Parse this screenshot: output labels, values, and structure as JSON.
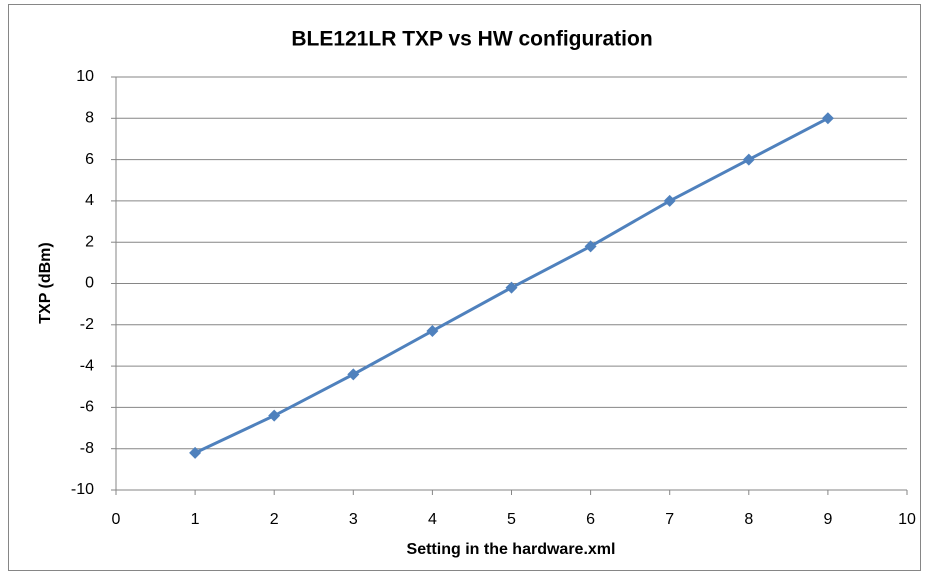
{
  "chart_data": {
    "type": "line",
    "title": "BLE121LR TXP vs HW configuration",
    "x_label": "Setting in the hardware.xml",
    "y_label": "TXP (dBm)",
    "x": [
      1,
      2,
      3,
      4,
      5,
      6,
      7,
      8,
      9
    ],
    "series": [
      {
        "name": "TXP",
        "color": "#4f81bd",
        "values": [
          -8.2,
          -6.4,
          -4.4,
          -2.3,
          -0.2,
          1.8,
          4,
          6,
          8
        ]
      }
    ],
    "xlim": [
      0,
      10
    ],
    "xticks": [
      0,
      1,
      2,
      3,
      4,
      5,
      6,
      7,
      8,
      9,
      10
    ],
    "ylim": [
      -10,
      10
    ],
    "yticks": [
      -10,
      -8,
      -6,
      -4,
      -2,
      0,
      2,
      4,
      6,
      8,
      10
    ],
    "grid": true,
    "legend": false
  }
}
